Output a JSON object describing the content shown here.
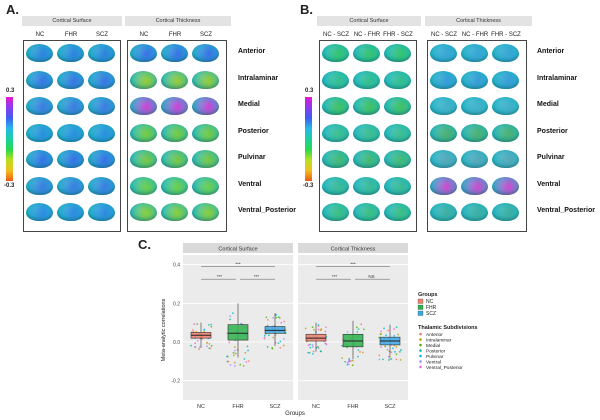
{
  "panel_a": {
    "letter": "A.",
    "strips": [
      "Cortical Surface",
      "Cortical Thickness"
    ],
    "groups_left": [
      "NC",
      "FHR",
      "SCZ"
    ],
    "groups_right": [
      "NC",
      "FHR",
      "SCZ"
    ],
    "colorbar_max": "0.3",
    "colorbar_min": "-0.3",
    "colors_left": [
      "#2f7fe0",
      "#3a72e6",
      "#3f79e4",
      "#2a8de0",
      "#386de8",
      "#3c7ae3",
      "#2f88e4"
    ],
    "colors_right": [
      "#3b6fe8",
      "#9acd32",
      "#d23fd8",
      "#7acc3a",
      "#7cc83f",
      "#6fd047",
      "#8ccf36"
    ]
  },
  "panel_b": {
    "letter": "B.",
    "strips": [
      "Cortical Surface",
      "Cortical Thickness"
    ],
    "groups_left": [
      "NC - SCZ",
      "NC - FHR",
      "FHR - SCZ"
    ],
    "groups_right": [
      "NC - SCZ",
      "NC - FHR",
      "FHR - SCZ"
    ],
    "colorbar_max": "0.3",
    "colorbar_min": "-0.3",
    "colors_left": [
      "#35c46a",
      "#36c08a",
      "#43c25e",
      "#3fbf8c",
      "#48b96f",
      "#3dbb92",
      "#3ebe7e"
    ],
    "colors_right": [
      "#3aa4d6",
      "#3a9bd8",
      "#45b0c9",
      "#4fb06b",
      "#5aa7b8",
      "#d247d0",
      "#3fae9f"
    ]
  },
  "rows": [
    "Anterior",
    "Intralaminar",
    "Medial",
    "Posterior",
    "Pulvinar",
    "Ventral",
    "Ventral_Posterior"
  ],
  "panel_c": {
    "letter": "C.",
    "strips": [
      "Cortical Surface",
      "Cortical Thickness"
    ],
    "sig_left": [
      "***",
      "***",
      "***"
    ],
    "sig_right": [
      "***",
      "***",
      "NS"
    ]
  },
  "chart_data": {
    "type": "box",
    "title": "",
    "xlabel": "Groups",
    "ylabel": "Meta-analytic correlations",
    "ylim": [
      -0.3,
      0.45
    ],
    "yticks": [
      -0.2,
      0.0,
      0.2,
      0.4
    ],
    "ytick_labels": [
      "-0.2",
      "0.0",
      "0.2",
      "0.4"
    ],
    "categories": [
      "NC",
      "FHR",
      "SCZ"
    ],
    "facets": [
      {
        "name": "Cortical Surface",
        "boxes": [
          {
            "group": "NC",
            "whisker_low": -0.03,
            "q1": 0.02,
            "median": 0.035,
            "q3": 0.05,
            "whisker_high": 0.1
          },
          {
            "group": "FHR",
            "whisker_low": -0.08,
            "q1": 0.01,
            "median": 0.045,
            "q3": 0.09,
            "whisker_high": 0.2
          },
          {
            "group": "SCZ",
            "whisker_low": -0.02,
            "q1": 0.045,
            "median": 0.06,
            "q3": 0.08,
            "whisker_high": 0.15
          }
        ]
      },
      {
        "name": "Cortical Thickness",
        "boxes": [
          {
            "group": "NC",
            "whisker_low": -0.05,
            "q1": 0.005,
            "median": 0.02,
            "q3": 0.04,
            "whisker_high": 0.1
          },
          {
            "group": "FHR",
            "whisker_low": -0.09,
            "q1": -0.025,
            "median": 0.005,
            "q3": 0.04,
            "whisker_high": 0.11
          },
          {
            "group": "SCZ",
            "whisker_low": -0.07,
            "q1": -0.015,
            "median": 0.005,
            "q3": 0.025,
            "whisker_high": 0.09
          }
        ]
      }
    ],
    "legend": {
      "groups_title": "Groups",
      "groups": [
        {
          "label": "NC",
          "color": "#f08070"
        },
        {
          "label": "FHR",
          "color": "#2fb24c"
        },
        {
          "label": "SCZ",
          "color": "#3aa6e6"
        }
      ],
      "subdivisions_title": "Thalamic Subdivisions",
      "subdivisions": [
        "Anterior",
        "Intralaminar",
        "Medial",
        "Posterior",
        "Pulvinar",
        "Ventral",
        "Ventral_Posterior"
      ],
      "subdivision_colors": [
        "#f8766d",
        "#c49a00",
        "#53b400",
        "#00c094",
        "#00b6eb",
        "#a58aff",
        "#fb61d7"
      ]
    }
  }
}
